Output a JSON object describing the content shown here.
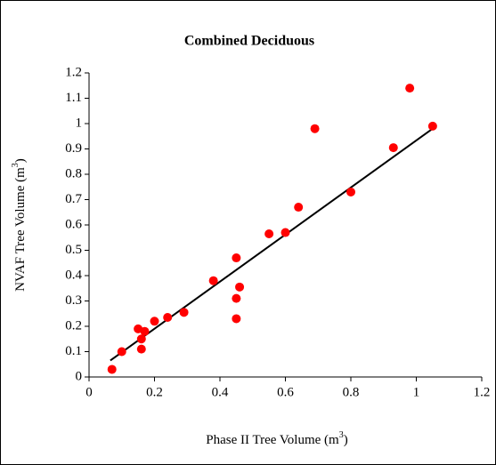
{
  "chart_data": {
    "type": "scatter",
    "title": "Combined Deciduous",
    "x_label_parts": [
      "Phase II Tree Volume (m",
      "3",
      ")"
    ],
    "y_label_parts": [
      "NVAF Tree Volume (m",
      "3",
      ")"
    ],
    "series": [
      {
        "color": "#ff0000",
        "x": [
          0.07,
          0.1,
          0.15,
          0.16,
          0.16,
          0.17,
          0.2,
          0.24,
          0.29,
          0.38,
          0.45,
          0.45,
          0.45,
          0.46,
          0.55,
          0.6,
          0.64,
          0.69,
          0.8,
          0.93,
          0.98,
          1.05
        ],
        "values": [
          0.03,
          0.1,
          0.19,
          0.11,
          0.15,
          0.18,
          0.22,
          0.235,
          0.255,
          0.38,
          0.47,
          0.31,
          0.23,
          0.355,
          0.565,
          0.57,
          0.67,
          0.98,
          0.73,
          0.905,
          1.14,
          0.99
        ]
      }
    ],
    "trendline": {
      "color": "#000000",
      "x": [
        0.065,
        1.05
      ],
      "values": [
        0.065,
        0.98
      ]
    },
    "xlim": [
      0,
      1.2
    ],
    "xticks": [
      0,
      0.2,
      0.4,
      0.6,
      0.8,
      1,
      1.2
    ],
    "ylim": [
      0,
      1.2
    ],
    "yticks": [
      0,
      0.1,
      0.2,
      0.3,
      0.4,
      0.5,
      0.6,
      0.7,
      0.8,
      0.9,
      1,
      1.1,
      1.2
    ]
  }
}
